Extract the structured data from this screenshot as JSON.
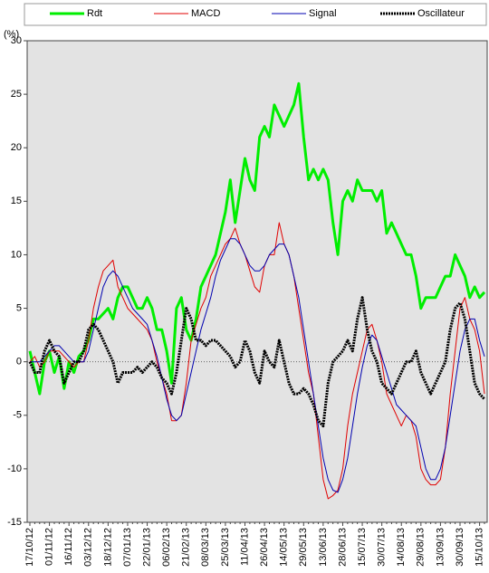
{
  "chart_data": {
    "type": "line",
    "y_label": "(%)",
    "legend": "top",
    "zero_line": true,
    "ylim": [
      -15,
      30
    ],
    "yticks": [
      -15,
      -10,
      -5,
      0,
      5,
      10,
      15,
      20,
      25,
      30
    ],
    "categories": [
      "17/10/12",
      null,
      null,
      null,
      "01/11/12",
      null,
      null,
      null,
      "16/11/12",
      null,
      null,
      null,
      "03/12/12",
      null,
      null,
      null,
      "18/12/12",
      null,
      null,
      null,
      "07/01/13",
      null,
      null,
      null,
      "22/01/13",
      null,
      null,
      null,
      "06/02/13",
      null,
      null,
      null,
      "21/02/13",
      null,
      null,
      null,
      "08/03/13",
      null,
      null,
      null,
      "25/03/13",
      null,
      null,
      null,
      "11/04/13",
      null,
      null,
      null,
      "26/04/13",
      null,
      null,
      null,
      "14/05/13",
      null,
      null,
      null,
      "29/05/13",
      null,
      null,
      null,
      "13/06/13",
      null,
      null,
      null,
      "28/06/13",
      null,
      null,
      null,
      "15/07/13",
      null,
      null,
      null,
      "30/07/13",
      null,
      null,
      null,
      "14/08/13",
      null,
      null,
      null,
      "29/08/13",
      null,
      null,
      null,
      "13/09/13",
      null,
      null,
      null,
      "30/09/13",
      null,
      null,
      null,
      "15/10/13",
      null
    ],
    "series": [
      {
        "name": "Rdt",
        "color": "#00ee00",
        "width": 3,
        "values": [
          1,
          -1,
          -3,
          0,
          1,
          -1,
          0.5,
          -2.5,
          0,
          -1,
          0.5,
          1,
          2,
          4,
          4,
          4.5,
          5,
          4,
          6,
          7,
          7,
          6,
          5,
          5,
          6,
          5,
          3,
          3,
          1,
          -2,
          5,
          6,
          3,
          2,
          4,
          7,
          8,
          9,
          10,
          12,
          14,
          17,
          13,
          16,
          19,
          17,
          16,
          21,
          22,
          21,
          24,
          23,
          22,
          23,
          24,
          26,
          21,
          17,
          18,
          17,
          18,
          17,
          13,
          10,
          15,
          16,
          15,
          17,
          16,
          16,
          16,
          15,
          16,
          12,
          13,
          12,
          11,
          10,
          10,
          8,
          5,
          6,
          6,
          6,
          7,
          8,
          8,
          10,
          9,
          8,
          6,
          7,
          6,
          6.5
        ]
      },
      {
        "name": "MACD",
        "color": "#e00000",
        "width": 1,
        "values": [
          0,
          0.5,
          -0.5,
          0,
          1,
          1,
          1,
          0.5,
          0,
          -0.5,
          0,
          0,
          2,
          5,
          7,
          8.5,
          9,
          9.5,
          7,
          6,
          5,
          4.5,
          4,
          3.5,
          3,
          2,
          0,
          -1.5,
          -3,
          -5.5,
          -5.5,
          -5,
          -2,
          2,
          3.5,
          5,
          6,
          8,
          9,
          10,
          11,
          11.5,
          12.5,
          11,
          10,
          8.5,
          7,
          6.5,
          9,
          10,
          10,
          13,
          11,
          10,
          8,
          5,
          2,
          -1,
          -3,
          -7,
          -11,
          -12.8,
          -12.5,
          -12,
          -10,
          -6,
          -3,
          -1,
          1,
          3,
          3.5,
          2,
          0,
          -3,
          -4,
          -5,
          -6,
          -5,
          -5.5,
          -7,
          -10,
          -11,
          -11.5,
          -11.5,
          -11,
          -8,
          -3,
          1,
          5,
          6,
          4,
          3,
          1,
          -3
        ]
      },
      {
        "name": "Signal",
        "color": "#0000b0",
        "width": 1,
        "values": [
          0,
          0,
          0,
          0.5,
          1,
          1.5,
          1.5,
          1,
          0.5,
          0,
          0,
          0,
          1,
          3,
          5,
          7,
          8,
          8.5,
          8,
          7,
          6,
          5,
          4.5,
          4,
          3.5,
          2,
          0.5,
          -1.5,
          -3.5,
          -5,
          -5.5,
          -5,
          -3,
          -1,
          1,
          3,
          4.5,
          6,
          8,
          9.5,
          10.5,
          11.5,
          11.5,
          11,
          10,
          9,
          8.5,
          8.5,
          9,
          10,
          10.5,
          11,
          11,
          10,
          8,
          6,
          3,
          0,
          -3,
          -6,
          -9,
          -11,
          -12,
          -12.2,
          -11,
          -9,
          -6,
          -3,
          -0.5,
          1.5,
          2.5,
          2,
          0.5,
          -1,
          -2.5,
          -4,
          -4.5,
          -5,
          -5.5,
          -6,
          -8,
          -10,
          -11,
          -11,
          -10,
          -8,
          -5,
          -2,
          1,
          3,
          4,
          4,
          2,
          0.5
        ]
      },
      {
        "name": "Oscillateur",
        "color": "#000000",
        "width": 3,
        "values": [
          0,
          -1,
          -1,
          1,
          2,
          1,
          0.5,
          -2,
          -1,
          0,
          0,
          1,
          3,
          3.5,
          3,
          2,
          1,
          0,
          -2,
          -1,
          -1,
          -1,
          -0.5,
          -1,
          -0.5,
          0,
          -0.5,
          -1.5,
          -2,
          -3,
          -1,
          2,
          5,
          4,
          2,
          2,
          1.5,
          2,
          2,
          1.5,
          1,
          0.5,
          -0.5,
          0,
          2,
          1,
          -1,
          -2,
          1,
          0,
          -0.5,
          2,
          0,
          -2,
          -3,
          -3,
          -2.5,
          -3,
          -4,
          -5.5,
          -6,
          -2,
          0,
          0.5,
          1,
          2,
          1,
          4,
          6,
          3,
          1,
          0,
          -2,
          -2.5,
          -3,
          -2,
          -1,
          0,
          0,
          1,
          -1,
          -2,
          -3,
          -2,
          -1,
          0,
          3,
          5,
          5.5,
          4,
          1,
          -2,
          -3,
          -3.5
        ]
      }
    ]
  }
}
